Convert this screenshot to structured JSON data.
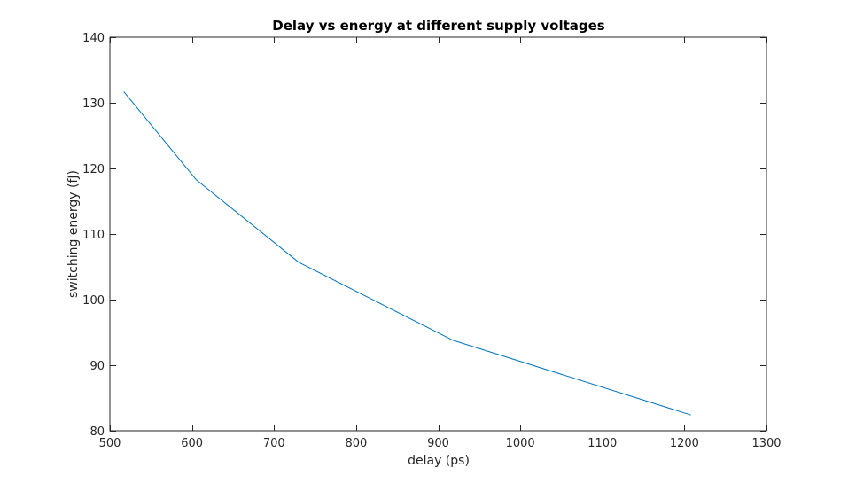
{
  "chart_data": {
    "type": "line",
    "title": "Delay vs energy at different supply voltages",
    "xlabel": "delay (ps)",
    "ylabel": "switching energy (fJ)",
    "xlim": [
      500,
      1300
    ],
    "ylim": [
      80,
      140
    ],
    "xticks": [
      500,
      600,
      700,
      800,
      900,
      1000,
      1100,
      1200,
      1300
    ],
    "yticks": [
      80,
      90,
      100,
      110,
      120,
      130,
      140
    ],
    "grid": false,
    "legend": "none",
    "series": [
      {
        "color": "#0072BD",
        "x": [
          517,
          605,
          730,
          918,
          1208
        ],
        "y": [
          131.7,
          118.3,
          105.7,
          93.8,
          82.4
        ]
      }
    ]
  }
}
